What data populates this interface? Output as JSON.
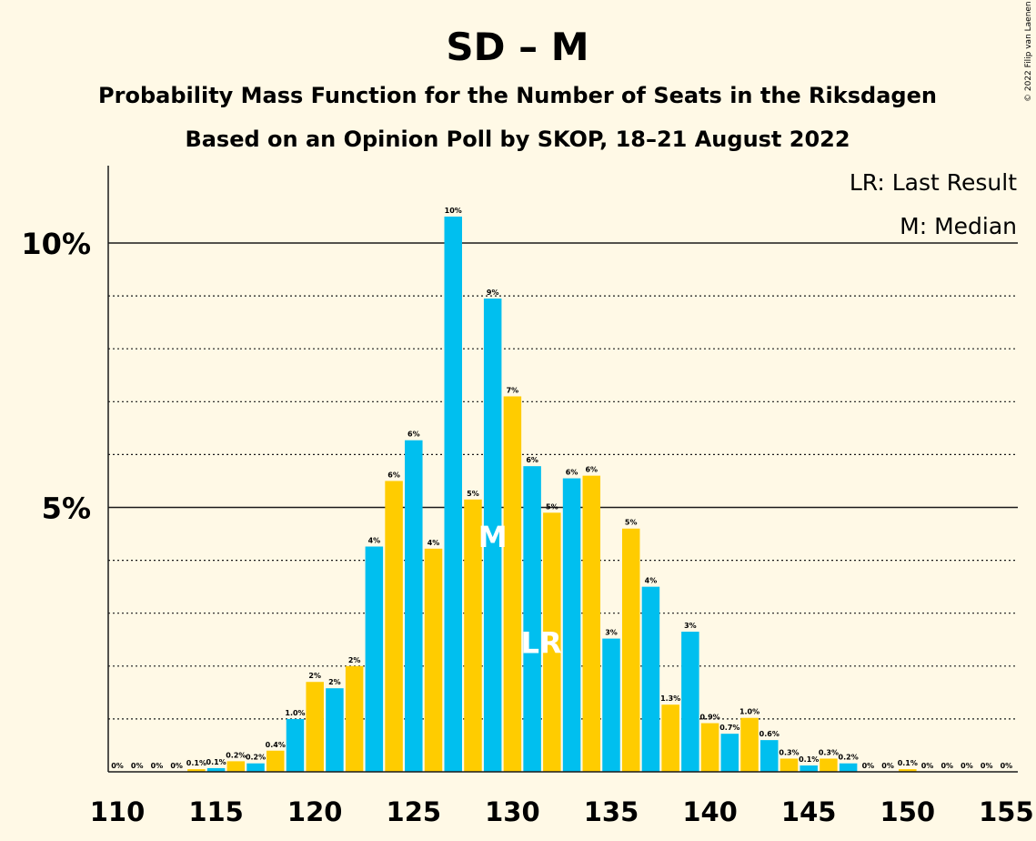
{
  "chart_data": {
    "type": "bar",
    "title": "SD – M",
    "subtitle_1": "Probability Mass Function for the Number of Seats in the Riksdagen",
    "subtitle_2": "Based on an Opinion Poll by SKOP, 18–21 August 2022",
    "copyright": "© 2022 Filip van Laenen",
    "legend": {
      "last_result": "LR: Last Result",
      "median": "M: Median",
      "placement": "top-right"
    },
    "markers": {
      "median": {
        "seat": 129,
        "text": "M"
      },
      "last_result": {
        "seat": 131,
        "text": "LR"
      }
    },
    "colors": {
      "blue": "#00BFEF",
      "yellow": "#FFCC00",
      "background": "#FFF9E6"
    },
    "xlim": [
      110,
      155
    ],
    "ylim": [
      0,
      11.5
    ],
    "x_ticks": [
      "110",
      "115",
      "120",
      "125",
      "130",
      "135",
      "140",
      "145",
      "150",
      "155"
    ],
    "y_ticks": [
      {
        "value": 5,
        "label": "5%"
      },
      {
        "value": 10,
        "label": "10%"
      }
    ],
    "minor_grid": [
      1,
      2,
      3,
      4,
      6,
      7,
      8,
      9
    ],
    "grid": true,
    "bars": [
      {
        "seat": 110,
        "value": 0.0,
        "label": "0%"
      },
      {
        "seat": 111,
        "value": 0.0,
        "label": "0%"
      },
      {
        "seat": 112,
        "value": 0.0,
        "label": "0%"
      },
      {
        "seat": 113,
        "value": 0.0,
        "label": "0%"
      },
      {
        "seat": 114,
        "value": 0.05,
        "label": "0.1%"
      },
      {
        "seat": 115,
        "value": 0.07,
        "label": "0.1%"
      },
      {
        "seat": 116,
        "value": 0.2,
        "label": "0.2%"
      },
      {
        "seat": 117,
        "value": 0.16,
        "label": "0.2%"
      },
      {
        "seat": 118,
        "value": 0.4,
        "label": "0.4%"
      },
      {
        "seat": 119,
        "value": 1.0,
        "label": "1.0%"
      },
      {
        "seat": 120,
        "value": 1.7,
        "label": "2%"
      },
      {
        "seat": 121,
        "value": 1.58,
        "label": "2%"
      },
      {
        "seat": 122,
        "value": 2.0,
        "label": "2%"
      },
      {
        "seat": 123,
        "value": 4.26,
        "label": "4%"
      },
      {
        "seat": 124,
        "value": 5.5,
        "label": "6%"
      },
      {
        "seat": 125,
        "value": 6.27,
        "label": "6%"
      },
      {
        "seat": 126,
        "value": 4.22,
        "label": "4%"
      },
      {
        "seat": 127,
        "value": 10.5,
        "label": "10%"
      },
      {
        "seat": 128,
        "value": 5.15,
        "label": "5%"
      },
      {
        "seat": 129,
        "value": 8.95,
        "label": "9%"
      },
      {
        "seat": 130,
        "value": 7.1,
        "label": "7%"
      },
      {
        "seat": 131,
        "value": 5.78,
        "label": "6%"
      },
      {
        "seat": 132,
        "value": 4.9,
        "label": "5%"
      },
      {
        "seat": 133,
        "value": 5.55,
        "label": "6%"
      },
      {
        "seat": 134,
        "value": 5.6,
        "label": "6%"
      },
      {
        "seat": 135,
        "value": 2.52,
        "label": "3%"
      },
      {
        "seat": 136,
        "value": 4.6,
        "label": "5%"
      },
      {
        "seat": 137,
        "value": 3.5,
        "label": "4%"
      },
      {
        "seat": 138,
        "value": 1.27,
        "label": "1.3%"
      },
      {
        "seat": 139,
        "value": 2.65,
        "label": "3%"
      },
      {
        "seat": 140,
        "value": 0.92,
        "label": "0.9%"
      },
      {
        "seat": 141,
        "value": 0.72,
        "label": "0.7%"
      },
      {
        "seat": 142,
        "value": 1.02,
        "label": "1.0%"
      },
      {
        "seat": 143,
        "value": 0.6,
        "label": "0.6%"
      },
      {
        "seat": 144,
        "value": 0.25,
        "label": "0.3%"
      },
      {
        "seat": 145,
        "value": 0.12,
        "label": "0.1%"
      },
      {
        "seat": 146,
        "value": 0.25,
        "label": "0.3%"
      },
      {
        "seat": 147,
        "value": 0.16,
        "label": "0.2%"
      },
      {
        "seat": 148,
        "value": 0.0,
        "label": "0%"
      },
      {
        "seat": 149,
        "value": 0.0,
        "label": "0%"
      },
      {
        "seat": 150,
        "value": 0.05,
        "label": "0.1%"
      },
      {
        "seat": 151,
        "value": 0.0,
        "label": "0%"
      },
      {
        "seat": 152,
        "value": 0.0,
        "label": "0%"
      },
      {
        "seat": 153,
        "value": 0.0,
        "label": "0%"
      },
      {
        "seat": 154,
        "value": 0.0,
        "label": "0%"
      },
      {
        "seat": 155,
        "value": 0.0,
        "label": "0%"
      }
    ]
  }
}
